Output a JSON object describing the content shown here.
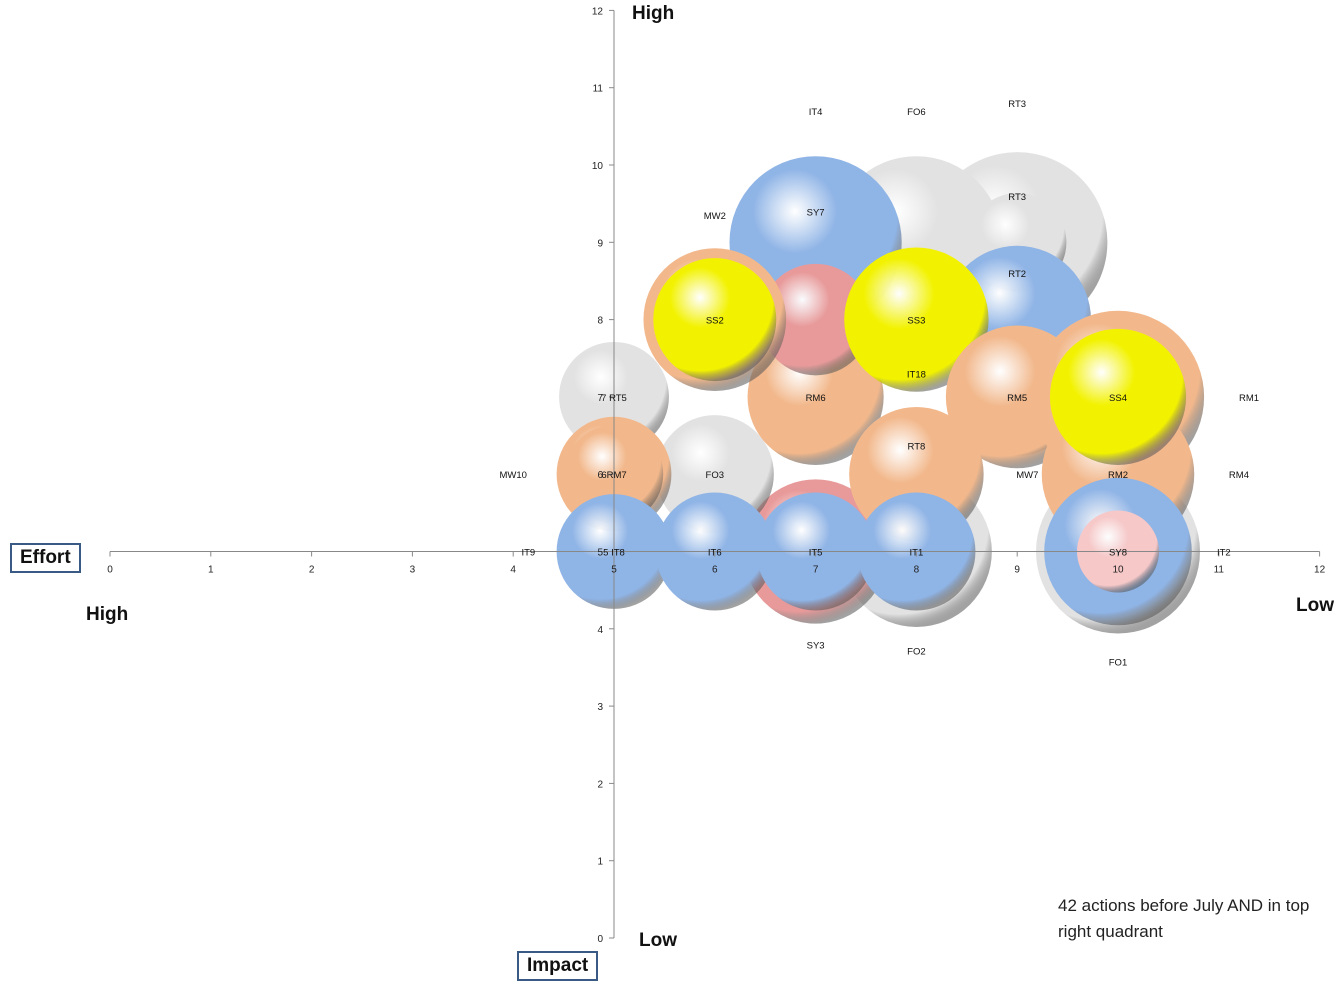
{
  "labels": {
    "impact_high": "High",
    "impact_low": "Low",
    "effort_high": "High",
    "effort_low": "Low",
    "effort_axis": "Effort",
    "impact_axis": "Impact",
    "note": "42 actions before July AND in top right quadrant"
  },
  "colors": {
    "blue": "#8fb4e6",
    "white": "#e2e2e2",
    "peach": "#f2b88c",
    "yellow": "#f2f200",
    "pink": "#e89a9a",
    "lightpink": "#f6c8c8"
  },
  "chart_data": {
    "type": "bubble",
    "xlim": [
      0,
      12
    ],
    "ylim": [
      0,
      12
    ],
    "xticks": [
      "0",
      "1",
      "2",
      "3",
      "4",
      "5",
      "6",
      "7",
      "8",
      "9",
      "10",
      "11",
      "12"
    ],
    "yticks": [
      "0",
      "1",
      "2",
      "3",
      "4",
      "5",
      "6",
      "7",
      "8",
      "9",
      "10",
      "11",
      "12"
    ],
    "x_axis_crosses_y_at": 5,
    "y_axis_crosses_x_at": 5,
    "x_tick_labels_shown": [
      "5",
      "6",
      "7",
      "8",
      "9",
      "10",
      "11"
    ],
    "points": [
      {
        "label": "FO1",
        "x": 10,
        "y": 5,
        "size": 1.0,
        "color": "white"
      },
      {
        "label": "RT3",
        "x": 9,
        "y": 9,
        "size": 1.1,
        "color": "white"
      },
      {
        "label": "FO6",
        "x": 8,
        "y": 9,
        "size": 1.05,
        "color": "white"
      },
      {
        "label": "IT4",
        "x": 7,
        "y": 9,
        "size": 1.05,
        "color": "blue"
      },
      {
        "label": "RT3",
        "x": 9,
        "y": 9,
        "size": 0.6,
        "color": "white"
      },
      {
        "label": "RT2",
        "x": 9,
        "y": 8,
        "size": 0.9,
        "color": "blue"
      },
      {
        "label": "SY7",
        "x": 7,
        "y": 9,
        "size": 0.05,
        "color": "blue"
      },
      {
        "label": "MW2",
        "x": 6,
        "y": 9,
        "size": 0.05,
        "color": "peach"
      },
      {
        "label": "FO2",
        "x": 8,
        "y": 5,
        "size": 0.92,
        "color": "white"
      },
      {
        "label": "SY3",
        "x": 7,
        "y": 5,
        "size": 0.88,
        "color": "pink"
      },
      {
        "label": "FO3",
        "x": 6,
        "y": 6,
        "size": 0.72,
        "color": "white"
      },
      {
        "label": "RM6",
        "x": 7,
        "y": 7,
        "size": 0.83,
        "color": "peach"
      },
      {
        "label": "",
        "x": 7,
        "y": 8,
        "size": 0.68,
        "color": "pink"
      },
      {
        "label": "",
        "x": 6,
        "y": 8,
        "size": 0.87,
        "color": "peach"
      },
      {
        "label": "SS2",
        "x": 6,
        "y": 8,
        "size": 0.75,
        "color": "yellow"
      },
      {
        "label": "SS3",
        "x": 8,
        "y": 8,
        "size": 0.88,
        "color": "yellow"
      },
      {
        "label": "IT18",
        "x": 8,
        "y": 7,
        "size": 0.05,
        "color": "white"
      },
      {
        "label": "",
        "x": 9,
        "y": 7,
        "size": 0.72,
        "color": "white"
      },
      {
        "label": "RM5",
        "x": 9,
        "y": 7,
        "size": 0.87,
        "color": "peach"
      },
      {
        "label": "RT8",
        "x": 8,
        "y": 6,
        "size": 0.82,
        "color": "peach"
      },
      {
        "label": "MW7",
        "x": 9,
        "y": 6,
        "size": 0.05,
        "color": "white"
      },
      {
        "label": "RM1",
        "x": 10,
        "y": 7,
        "size": 1.05,
        "color": "peach"
      },
      {
        "label": "RM4",
        "x": 10,
        "y": 6,
        "size": 0.93,
        "color": "peach"
      },
      {
        "label": "SS4",
        "x": 10,
        "y": 7,
        "size": 0.83,
        "color": "yellow"
      },
      {
        "label": "RM2",
        "x": 10,
        "y": 6,
        "size": 0.05,
        "color": "blue"
      },
      {
        "label": "IT2",
        "x": 10,
        "y": 5,
        "size": 0.9,
        "color": "blue"
      },
      {
        "label": "SY8",
        "x": 10,
        "y": 5,
        "size": 0.5,
        "color": "lightpink"
      },
      {
        "label": "RT5",
        "x": 5,
        "y": 7,
        "size": 0.67,
        "color": "white"
      },
      {
        "label": "MW10",
        "x": 5,
        "y": 6,
        "size": 0.7,
        "color": "peach"
      },
      {
        "label": "RM7",
        "x": 5,
        "y": 6,
        "size": 0.6,
        "color": "peach"
      },
      {
        "label": "IT9",
        "x": 5,
        "y": 5,
        "size": 0.05,
        "color": "blue"
      },
      {
        "label": "IT8",
        "x": 5,
        "y": 5,
        "size": 0.7,
        "color": "blue"
      },
      {
        "label": "IT6",
        "x": 6,
        "y": 5,
        "size": 0.72,
        "color": "blue"
      },
      {
        "label": "IT5",
        "x": 7,
        "y": 5,
        "size": 0.72,
        "color": "blue"
      },
      {
        "label": "IT1",
        "x": 8,
        "y": 5,
        "size": 0.72,
        "color": "blue"
      }
    ],
    "label_positions": [
      {
        "label": "RT3",
        "x": 9,
        "y": 10.8
      },
      {
        "label": "FO6",
        "x": 8,
        "y": 10.7
      },
      {
        "label": "IT4",
        "x": 7,
        "y": 10.7
      },
      {
        "label": "SY7",
        "x": 7,
        "y": 9.4
      },
      {
        "label": "MW2",
        "x": 6,
        "y": 9.35
      },
      {
        "label": "RT3",
        "x": 9,
        "y": 9.6
      },
      {
        "label": "RT2",
        "x": 9,
        "y": 8.6
      },
      {
        "label": "SS2",
        "x": 6,
        "y": 8
      },
      {
        "label": "SS3",
        "x": 8,
        "y": 8
      },
      {
        "label": "IT18",
        "x": 8,
        "y": 7.3
      },
      {
        "label": "RM6",
        "x": 7,
        "y": 7
      },
      {
        "label": "RM5",
        "x": 9,
        "y": 7
      },
      {
        "label": "SS4",
        "x": 10,
        "y": 7
      },
      {
        "label": "RM1",
        "x": 11.3,
        "y": 7
      },
      {
        "label": "7 RT5",
        "x": 5,
        "y": 7
      },
      {
        "label": "RT8",
        "x": 8,
        "y": 6.37
      },
      {
        "label": "FO3",
        "x": 6,
        "y": 6
      },
      {
        "label": "MW7",
        "x": 9.1,
        "y": 6
      },
      {
        "label": "RM2",
        "x": 10,
        "y": 6
      },
      {
        "label": "RM4",
        "x": 11.2,
        "y": 6
      },
      {
        "label": "MW10",
        "x": 4,
        "y": 6
      },
      {
        "label": "6RM7",
        "x": 5,
        "y": 6
      },
      {
        "label": "IT9",
        "x": 4.15,
        "y": 5
      },
      {
        "label": "5 IT8",
        "x": 5,
        "y": 5
      },
      {
        "label": "IT6",
        "x": 6,
        "y": 5
      },
      {
        "label": "IT5",
        "x": 7,
        "y": 5
      },
      {
        "label": "IT1",
        "x": 8,
        "y": 5
      },
      {
        "label": "SY8",
        "x": 10,
        "y": 5
      },
      {
        "label": "IT2",
        "x": 11.05,
        "y": 5
      },
      {
        "label": "SY3",
        "x": 7,
        "y": 3.8
      },
      {
        "label": "FO2",
        "x": 8,
        "y": 3.72
      },
      {
        "label": "FO1",
        "x": 10,
        "y": 3.58
      }
    ]
  }
}
